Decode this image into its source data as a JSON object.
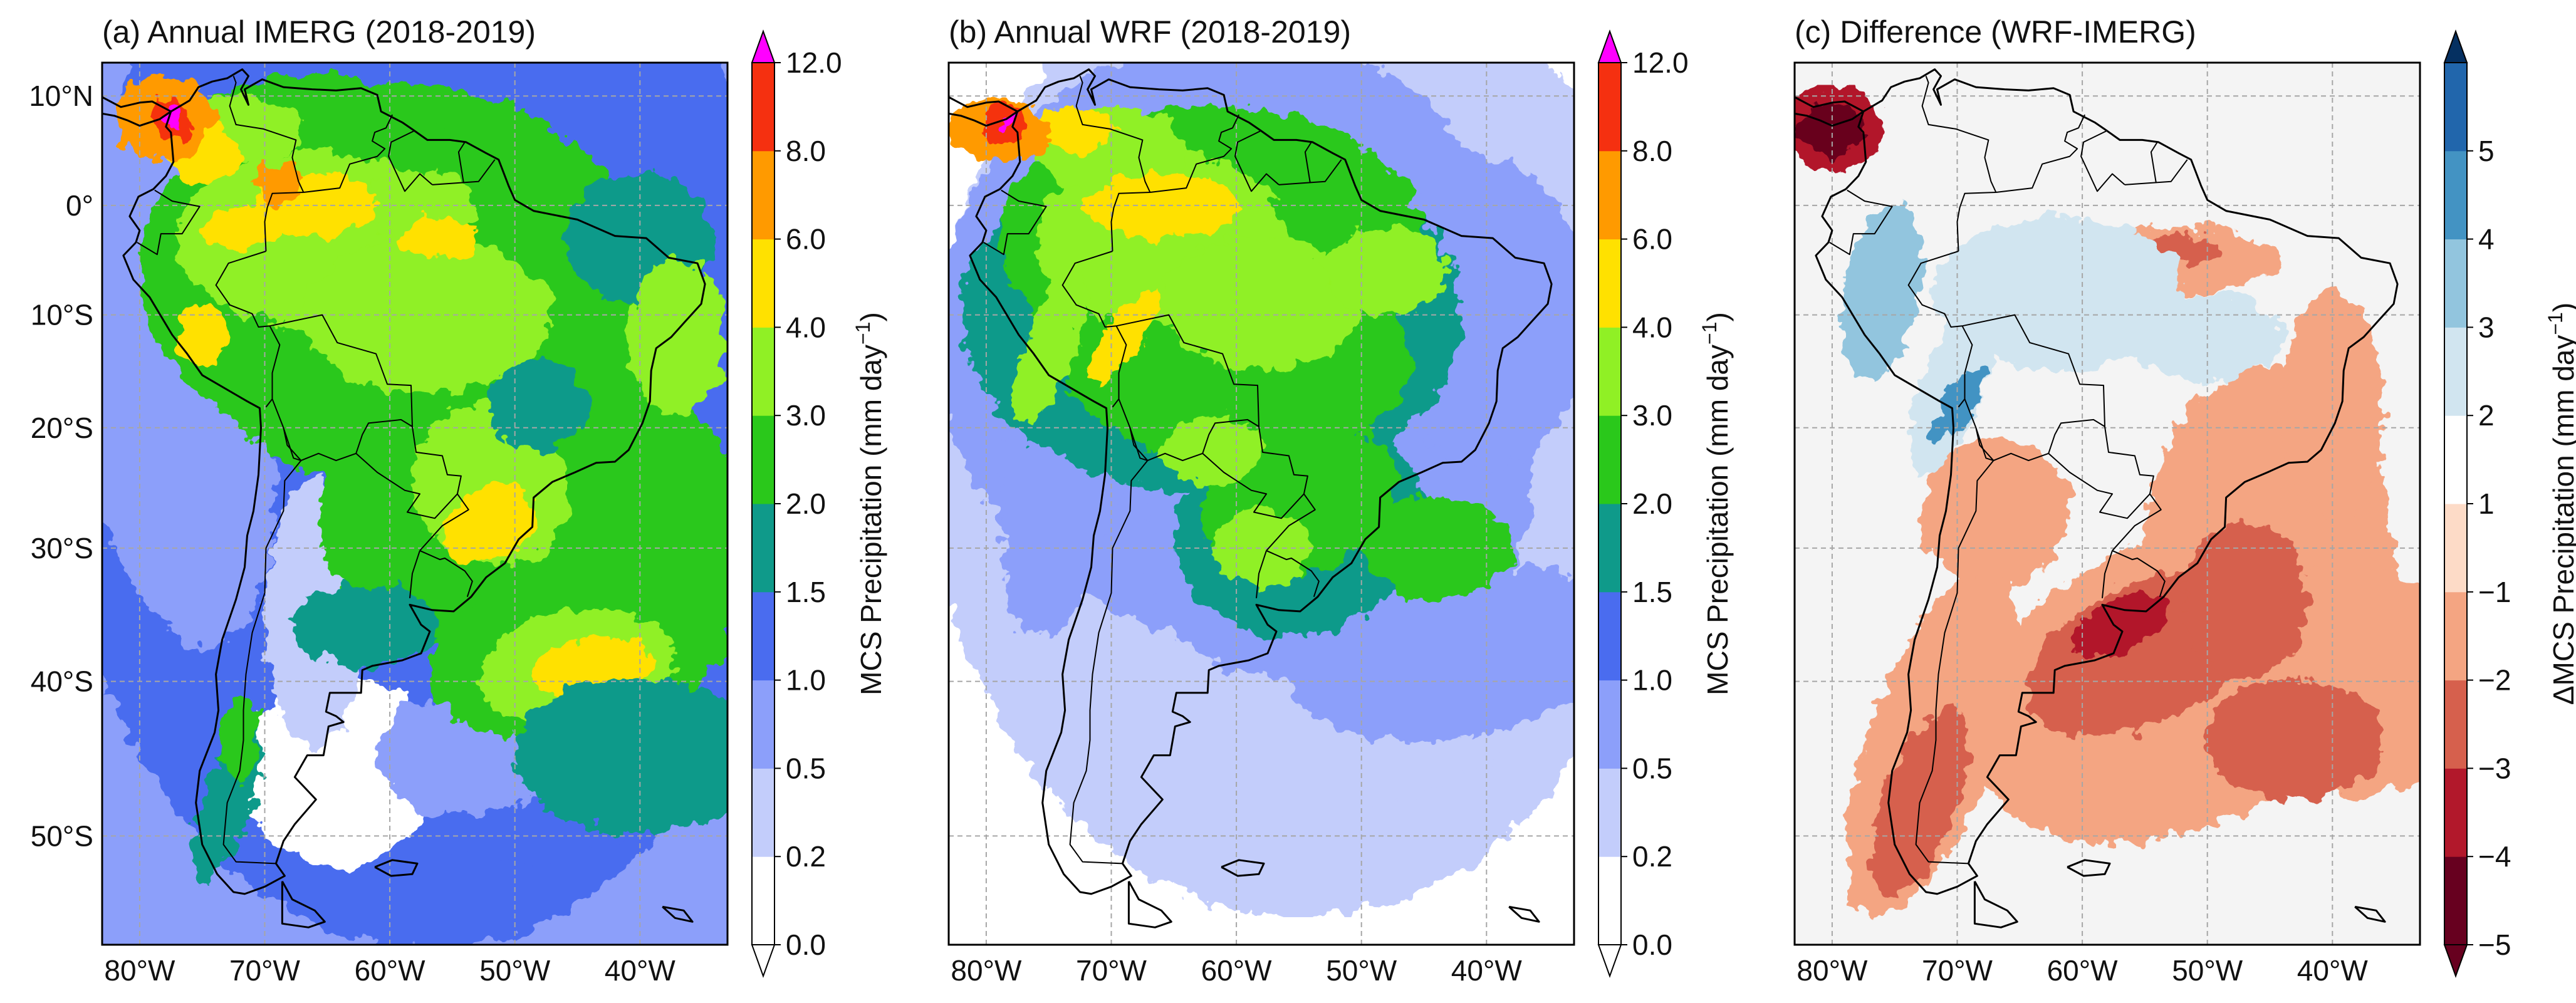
{
  "panels": [
    {
      "title": "(a) Annual IMERG (2018-2019)",
      "field": "imerg",
      "colorbar": {
        "label": "MCS Precipitation (mm day",
        "label_sup": "−1",
        "label_end": ")",
        "ticks": [
          "0.0",
          "0.2",
          "0.5",
          "1.0",
          "1.5",
          "2.0",
          "3.0",
          "4.0",
          "6.0",
          "8.0",
          "12.0"
        ],
        "colors": [
          "#ffffff",
          "#c3cdfb",
          "#8c9ffa",
          "#4a6cef",
          "#0f9a8a",
          "#2ac81b",
          "#90f025",
          "#ffe100",
          "#ff9a00",
          "#f53010"
        ],
        "over_color": "#ff00ff",
        "extend": "both"
      }
    },
    {
      "title": "(b) Annual WRF (2018-2019)",
      "field": "wrf",
      "colorbar": {
        "label": "MCS Precipitation (mm day",
        "label_sup": "−1",
        "label_end": ")",
        "ticks": [
          "0.0",
          "0.2",
          "0.5",
          "1.0",
          "1.5",
          "2.0",
          "3.0",
          "4.0",
          "6.0",
          "8.0",
          "12.0"
        ],
        "colors": [
          "#ffffff",
          "#c3cdfb",
          "#8c9ffa",
          "#4a6cef",
          "#0f9a8a",
          "#2ac81b",
          "#90f025",
          "#ffe100",
          "#ff9a00",
          "#f53010"
        ],
        "over_color": "#ff00ff",
        "extend": "both"
      }
    },
    {
      "title": "(c) Difference (WRF-IMERG)",
      "field": "diff",
      "colorbar": {
        "label": "ΔMCS Precipitation (mm day",
        "label_sup": "−1",
        "label_end": ")",
        "ticks": [
          "−5",
          "−4",
          "−3",
          "−2",
          "−1",
          "1",
          "2",
          "3",
          "4",
          "5"
        ],
        "colors": [
          "#67001f",
          "#b2182b",
          "#d6604d",
          "#f4a582",
          "#fddbc7",
          "#ffffff",
          "#d1e5f0",
          "#92c5de",
          "#4393c3",
          "#2166ac"
        ],
        "under_color": "#67001f",
        "over_color": "#053061",
        "extend": "both"
      }
    }
  ],
  "map": {
    "lon_range": [
      -83,
      -33
    ],
    "lat_range": [
      -56,
      13
    ],
    "lat_labels": [
      "10°N",
      "0°",
      "10°S",
      "20°S",
      "30°S",
      "40°S",
      "50°S"
    ],
    "lat_values": [
      10,
      0,
      -10,
      -20,
      -30,
      -40,
      -50
    ],
    "lon_labels": [
      "80°W",
      "70°W",
      "60°W",
      "50°W",
      "40°W"
    ],
    "lon_values": [
      -80,
      -70,
      -60,
      -50,
      -40
    ],
    "colors": {
      "land_outline": "#000000",
      "gridline": "#a6a6a6",
      "diff_background": "#f4f4f4"
    }
  }
}
